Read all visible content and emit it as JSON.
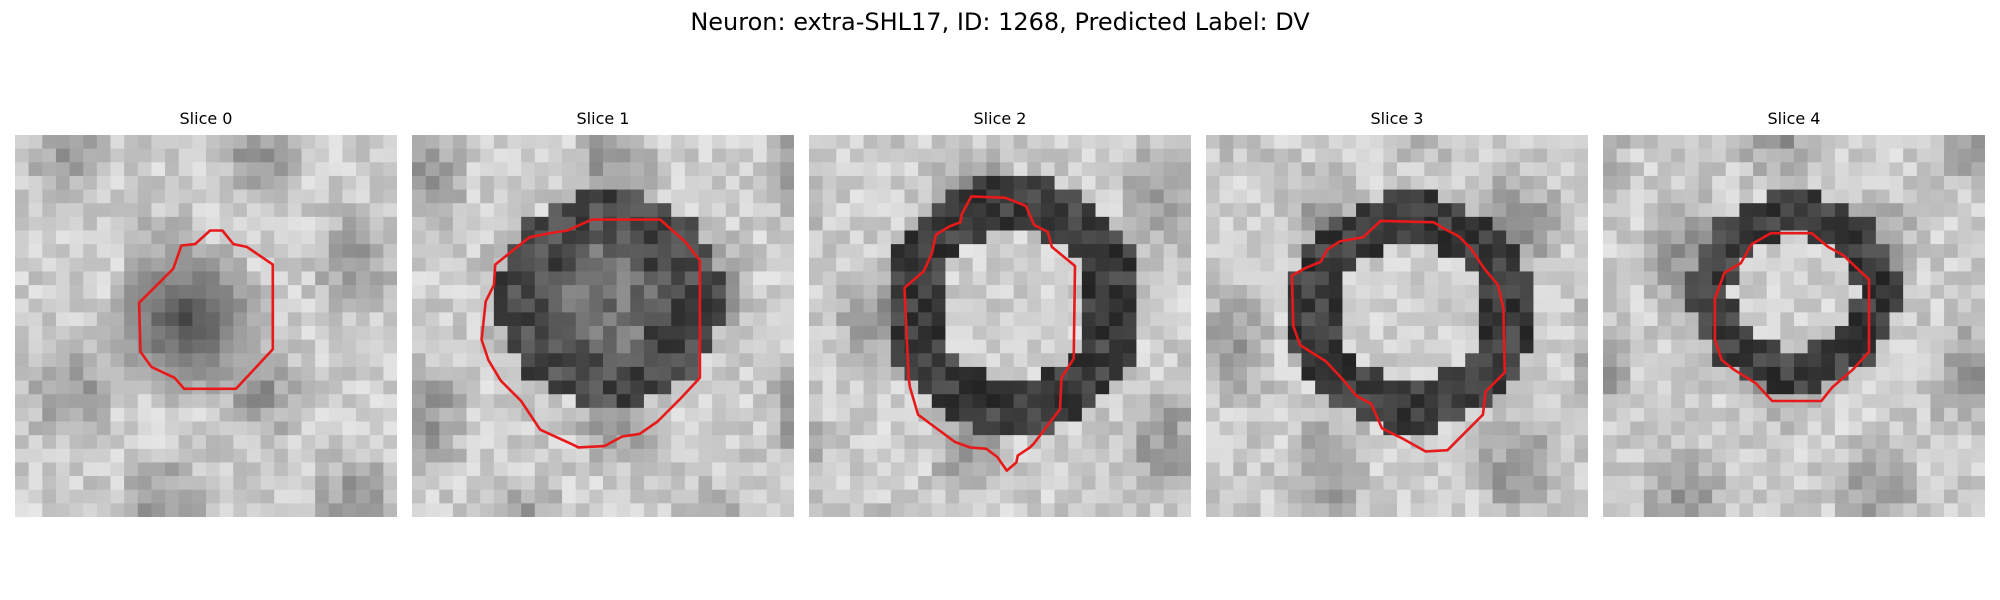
{
  "title": "Neuron: extra-SHL17, ID: 1268, Predicted Label: DV",
  "slices": [
    {
      "label": "Slice 0"
    },
    {
      "label": "Slice 1"
    },
    {
      "label": "Slice 2"
    },
    {
      "label": "Slice 3"
    },
    {
      "label": "Slice 4"
    }
  ],
  "colors": {
    "contour": "#e8191a",
    "background": "#ffffff"
  }
}
